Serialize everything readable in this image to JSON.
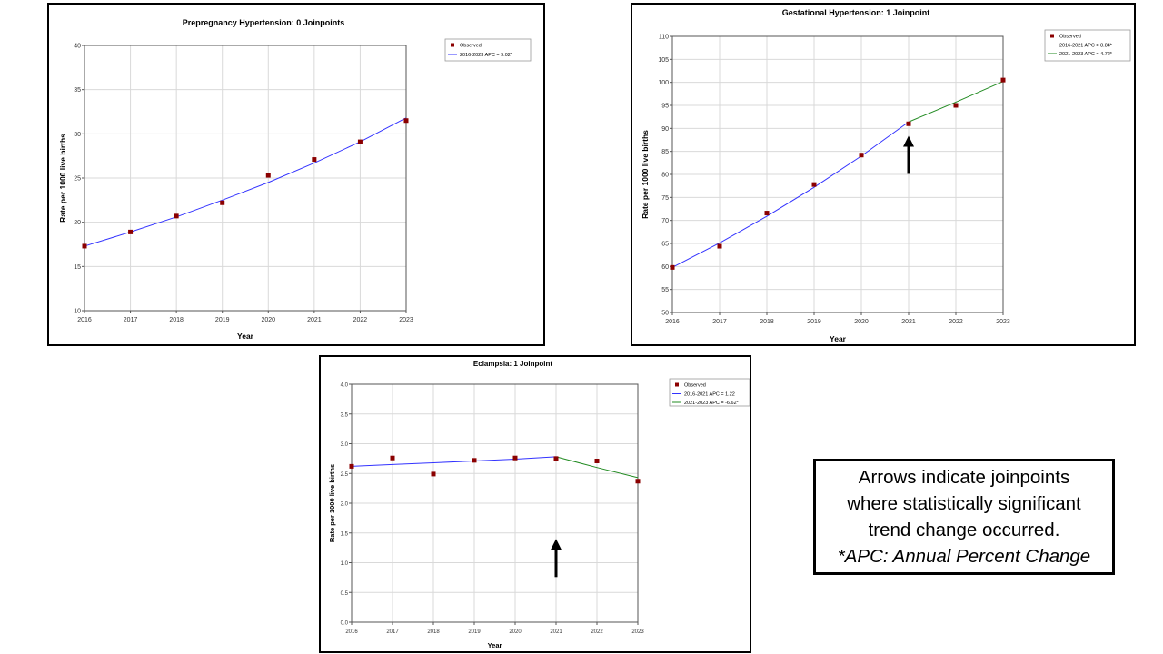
{
  "chart_data": [
    {
      "type": "line",
      "title": "Prepregnancy Hypertension: 0 Joinpoints",
      "xlabel": "Year",
      "ylabel": "Rate per 1000 live births",
      "x": [
        2016,
        2017,
        2018,
        2019,
        2020,
        2021,
        2022,
        2023
      ],
      "ylim": [
        10,
        40
      ],
      "yticks": [
        10,
        15,
        20,
        25,
        30,
        35,
        40
      ],
      "grid": true,
      "legend_position": "top-right",
      "observed": {
        "name": "Observed",
        "color": "#8b0000",
        "values": [
          17.3,
          18.9,
          20.7,
          22.2,
          25.3,
          27.1,
          29.1,
          31.5
        ]
      },
      "series": [
        {
          "name": "2016-2023 APC  = 9.02*",
          "color": "#3333ff",
          "x": [
            2016,
            2017,
            2018,
            2019,
            2020,
            2021,
            2022,
            2023
          ],
          "values": [
            17.3,
            18.9,
            20.6,
            22.5,
            24.5,
            26.7,
            29.1,
            31.8
          ]
        }
      ],
      "arrows": []
    },
    {
      "type": "line",
      "title": "Gestational Hypertension: 1 Joinpoint",
      "xlabel": "Year",
      "ylabel": "Rate per 1000 live births",
      "x": [
        2016,
        2017,
        2018,
        2019,
        2020,
        2021,
        2022,
        2023
      ],
      "ylim": [
        50,
        110
      ],
      "yticks": [
        50,
        55,
        60,
        65,
        70,
        75,
        80,
        85,
        90,
        95,
        100,
        105,
        110
      ],
      "grid": true,
      "legend_position": "top-right",
      "observed": {
        "name": "Observed",
        "color": "#8b0000",
        "values": [
          59.8,
          64.4,
          71.6,
          77.8,
          84.2,
          91.0,
          95.0,
          100.5
        ]
      },
      "series": [
        {
          "name": "2016-2021 APC  = 8.84*",
          "color": "#3333ff",
          "x": [
            2016,
            2017,
            2018,
            2019,
            2020,
            2021
          ],
          "values": [
            59.8,
            65.1,
            70.9,
            77.2,
            84.0,
            91.4
          ]
        },
        {
          "name": "2021-2023 APC  = 4.72*",
          "color": "#228b22",
          "x": [
            2021,
            2022,
            2023
          ],
          "values": [
            91.4,
            95.7,
            100.2
          ]
        }
      ],
      "arrows": [
        2021
      ]
    },
    {
      "type": "line",
      "title": "Eclampsia: 1 Joinpoint",
      "xlabel": "Year",
      "ylabel": "Rate per 1000 live births",
      "x": [
        2016,
        2017,
        2018,
        2019,
        2020,
        2021,
        2022,
        2023
      ],
      "ylim": [
        0.0,
        4.0
      ],
      "yticks": [
        "0.0",
        "0.5",
        "1.0",
        "1.5",
        "2.0",
        "2.5",
        "3.0",
        "3.5",
        "4.0"
      ],
      "grid": true,
      "legend_position": "top-right",
      "observed": {
        "name": "Observed",
        "color": "#8b0000",
        "values": [
          2.62,
          2.76,
          2.49,
          2.72,
          2.76,
          2.75,
          2.71,
          2.37
        ]
      },
      "series": [
        {
          "name": "2016-2021 APC  = 1.22",
          "color": "#3333ff",
          "x": [
            2016,
            2017,
            2018,
            2019,
            2020,
            2021
          ],
          "values": [
            2.62,
            2.65,
            2.68,
            2.71,
            2.74,
            2.78
          ]
        },
        {
          "name": "2021-2023 APC  = -6.62*",
          "color": "#228b22",
          "x": [
            2021,
            2022,
            2023
          ],
          "values": [
            2.78,
            2.6,
            2.43
          ]
        }
      ],
      "arrows": [
        2021
      ]
    }
  ],
  "note": {
    "line1": "Arrows indicate joinpoints",
    "line2": "where statistically significant",
    "line3": "trend change occurred.",
    "line4": "*APC: Annual Percent Change"
  }
}
